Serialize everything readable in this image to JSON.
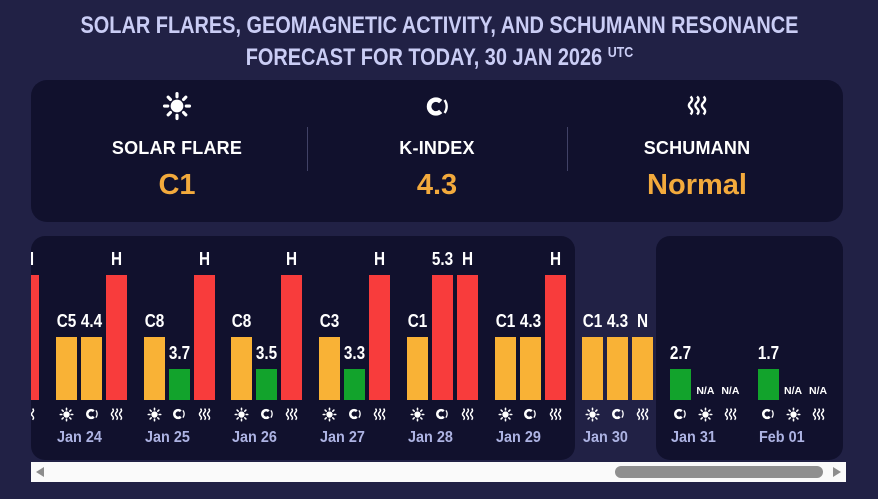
{
  "title": {
    "line1": "SOLAR FLARES, GEOMAGNETIC ACTIVITY, AND SCHUMANN RESONANCE",
    "line2": "FORECAST FOR TODAY, 30 JAN 2026",
    "line2_sup": "UTC"
  },
  "summary": {
    "items": [
      {
        "icon": "sun-icon",
        "label": "SOLAR FLARE",
        "value": "C1"
      },
      {
        "icon": "moon-icon",
        "label": "K-INDEX",
        "value": "4.3"
      },
      {
        "icon": "waves-icon",
        "label": "SCHUMANN",
        "value": "Normal"
      }
    ],
    "value_color": "#f3aa3c"
  },
  "chart_data": {
    "type": "bar",
    "legend": {
      "flare": "sun-icon",
      "kindex": "moon-icon",
      "schumann": "waves-icon"
    },
    "level_colors": {
      "low": "#12a32c",
      "moderate": "#f9b236",
      "high": "#f83c3c"
    },
    "days": [
      {
        "date": "",
        "today": false,
        "bars": [
          null,
          null,
          {
            "type": "schumann",
            "label": "H",
            "level": "high"
          }
        ]
      },
      {
        "date": "Jan 24",
        "today": false,
        "bars": [
          {
            "type": "flare",
            "label": "C5",
            "level": "moderate"
          },
          {
            "type": "kindex",
            "label": "4.4",
            "level": "moderate"
          },
          {
            "type": "schumann",
            "label": "H",
            "level": "high"
          }
        ]
      },
      {
        "date": "Jan 25",
        "today": false,
        "bars": [
          {
            "type": "flare",
            "label": "C8",
            "level": "moderate"
          },
          {
            "type": "kindex",
            "label": "3.7",
            "level": "low"
          },
          {
            "type": "schumann",
            "label": "H",
            "level": "high"
          }
        ]
      },
      {
        "date": "Jan 26",
        "today": false,
        "bars": [
          {
            "type": "flare",
            "label": "C8",
            "level": "moderate"
          },
          {
            "type": "kindex",
            "label": "3.5",
            "level": "low"
          },
          {
            "type": "schumann",
            "label": "H",
            "level": "high"
          }
        ]
      },
      {
        "date": "Jan 27",
        "today": false,
        "bars": [
          {
            "type": "flare",
            "label": "C3",
            "level": "moderate"
          },
          {
            "type": "kindex",
            "label": "3.3",
            "level": "low"
          },
          {
            "type": "schumann",
            "label": "H",
            "level": "high"
          }
        ]
      },
      {
        "date": "Jan 28",
        "today": false,
        "bars": [
          {
            "type": "flare",
            "label": "C1",
            "level": "moderate"
          },
          {
            "type": "kindex",
            "label": "5.3",
            "level": "high"
          },
          {
            "type": "schumann",
            "label": "H",
            "level": "high"
          }
        ]
      },
      {
        "date": "Jan 29",
        "today": false,
        "bars": [
          {
            "type": "flare",
            "label": "C1",
            "level": "moderate"
          },
          {
            "type": "kindex",
            "label": "4.3",
            "level": "moderate"
          },
          {
            "type": "schumann",
            "label": "H",
            "level": "high"
          }
        ]
      },
      {
        "date": "Jan 30",
        "today": true,
        "bars": [
          {
            "type": "flare",
            "label": "C1",
            "level": "moderate"
          },
          {
            "type": "kindex",
            "label": "4.3",
            "level": "moderate"
          },
          {
            "type": "schumann",
            "label": "N",
            "level": "moderate"
          }
        ]
      },
      {
        "date": "Jan 31",
        "today": false,
        "bars": [
          {
            "type": "kindex",
            "label": "2.7",
            "level": "low"
          },
          {
            "type": "flare",
            "label": "N/A",
            "level": "na"
          },
          {
            "type": "schumann",
            "label": "N/A",
            "level": "na"
          }
        ]
      },
      {
        "date": "Feb 01",
        "today": false,
        "bars": [
          {
            "type": "kindex",
            "label": "1.7",
            "level": "low"
          },
          {
            "type": "flare",
            "label": "N/A",
            "level": "na"
          },
          {
            "type": "schumann",
            "label": "N/A",
            "level": "na"
          }
        ]
      }
    ]
  },
  "scrollbar": {
    "orientation": "horizontal"
  }
}
